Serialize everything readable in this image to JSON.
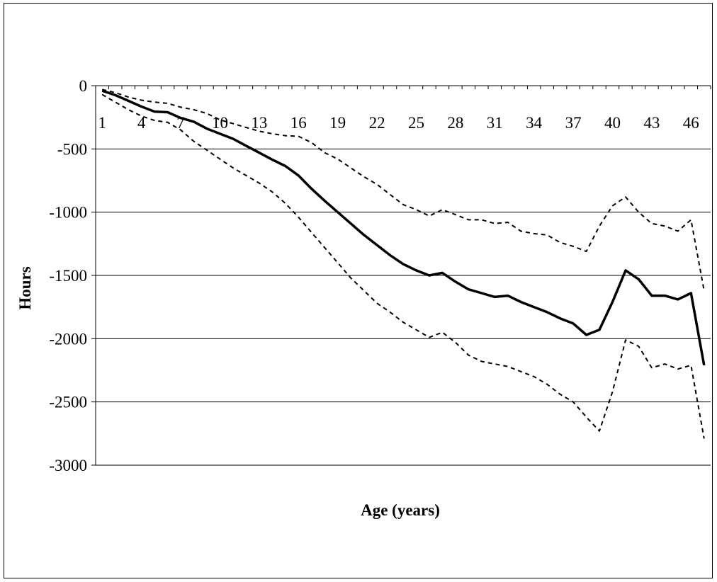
{
  "chart_data": {
    "type": "line",
    "title": "",
    "xlabel": "Age (years)",
    "ylabel": "Hours",
    "ylim": [
      -3000,
      0
    ],
    "y_ticks": [
      0,
      -500,
      -1000,
      -1500,
      -2000,
      -2500,
      -3000
    ],
    "x_tick_labels": [
      "1",
      "4",
      "7",
      "10",
      "13",
      "16",
      "19",
      "22",
      "25",
      "28",
      "31",
      "34",
      "37",
      "40",
      "43",
      "46"
    ],
    "x": [
      1,
      2,
      3,
      4,
      5,
      6,
      7,
      8,
      9,
      10,
      11,
      12,
      13,
      14,
      15,
      16,
      17,
      18,
      19,
      20,
      21,
      22,
      23,
      24,
      25,
      26,
      27,
      28,
      29,
      30,
      31,
      32,
      33,
      34,
      35,
      36,
      37,
      38,
      39,
      40,
      41,
      42,
      43,
      44,
      45,
      46,
      47
    ],
    "grid": "horizontal",
    "legend": "none",
    "series": [
      {
        "style": "solid",
        "values": [
          -40,
          -75,
          -120,
          -165,
          -205,
          -210,
          -255,
          -285,
          -340,
          -380,
          -420,
          -475,
          -530,
          -585,
          -635,
          -710,
          -815,
          -910,
          -1000,
          -1090,
          -1180,
          -1260,
          -1340,
          -1410,
          -1460,
          -1500,
          -1480,
          -1550,
          -1610,
          -1640,
          -1670,
          -1660,
          -1710,
          -1750,
          -1790,
          -1840,
          -1880,
          -1970,
          -1930,
          -1710,
          -1460,
          -1530,
          -1660,
          -1660,
          -1690,
          -1640,
          -2210
        ]
      },
      {
        "style": "dashed",
        "values": [
          -30,
          -55,
          -90,
          -115,
          -130,
          -140,
          -170,
          -190,
          -220,
          -270,
          -300,
          -330,
          -360,
          -380,
          -395,
          -400,
          -450,
          -530,
          -580,
          -650,
          -720,
          -780,
          -860,
          -940,
          -980,
          -1030,
          -980,
          -1020,
          -1060,
          -1060,
          -1090,
          -1080,
          -1150,
          -1170,
          -1180,
          -1240,
          -1270,
          -1310,
          -1110,
          -950,
          -880,
          -1000,
          -1090,
          -1110,
          -1150,
          -1060,
          -1620
        ]
      },
      {
        "style": "dashed",
        "values": [
          -70,
          -130,
          -190,
          -240,
          -275,
          -290,
          -350,
          -440,
          -510,
          -580,
          -650,
          -710,
          -770,
          -840,
          -930,
          -1040,
          -1160,
          -1280,
          -1400,
          -1520,
          -1620,
          -1720,
          -1790,
          -1870,
          -1930,
          -1990,
          -1950,
          -2030,
          -2130,
          -2180,
          -2200,
          -2220,
          -2260,
          -2300,
          -2360,
          -2440,
          -2500,
          -2620,
          -2730,
          -2420,
          -2010,
          -2060,
          -2230,
          -2200,
          -2240,
          -2210,
          -2790
        ]
      }
    ]
  }
}
